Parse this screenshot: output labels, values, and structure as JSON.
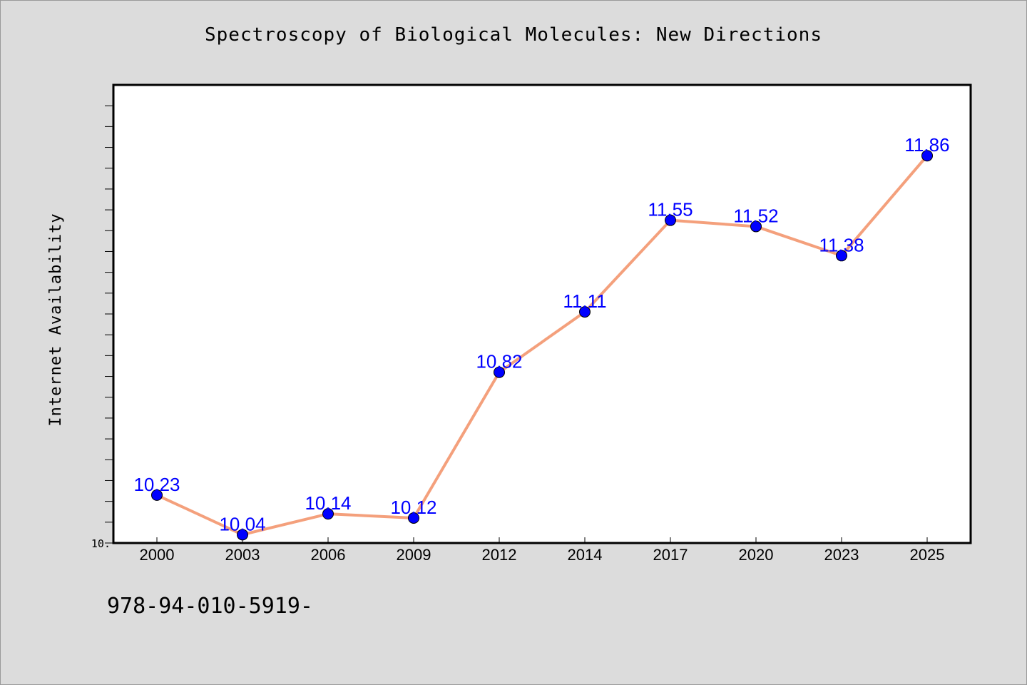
{
  "chart_data": {
    "type": "line",
    "title": "Spectroscopy of Biological Molecules: New Directions",
    "xlabel": "",
    "ylabel": "Internet Availability",
    "categories": [
      "2000",
      "2003",
      "2006",
      "2009",
      "2012",
      "2014",
      "2017",
      "2020",
      "2023",
      "2025"
    ],
    "series": [
      {
        "values": [
          10.23,
          10.04,
          10.14,
          10.12,
          10.82,
          11.11,
          11.55,
          11.52,
          11.38,
          11.86
        ],
        "data_labels": [
          "10.23",
          "10.04",
          "10.14",
          "10.12",
          "10.82",
          "11.11",
          "11.55",
          "11.52",
          "11.38",
          "11.86"
        ]
      }
    ],
    "ylim": [
      10.0,
      12.2
    ],
    "y_minor_tick_step": 0.1,
    "y_tick_labels": [
      {
        "value": 10.0,
        "label": "10."
      }
    ],
    "grid": false,
    "line_color": "#f4a07c",
    "marker_color": "#0000ff",
    "label_color": "#0000ff",
    "plot_background": "#ffffff"
  },
  "footer": {
    "isbn": "978-94-010-5919-"
  }
}
